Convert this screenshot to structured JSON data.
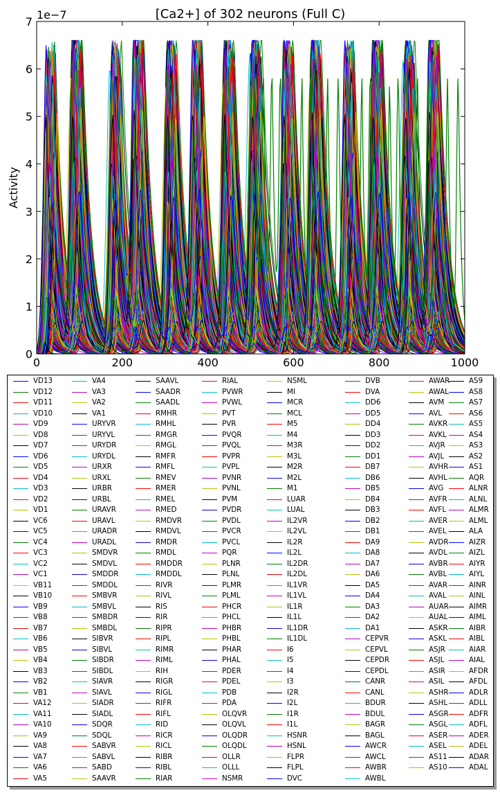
{
  "chart_data": {
    "type": "line",
    "title": "[Ca2+] of 302 neurons (Full C)",
    "xlabel": "",
    "ylabel": "Activity",
    "xlim": [
      0,
      1000
    ],
    "ylim": [
      0,
      7e-07
    ],
    "x_ticks": [
      "0",
      "200",
      "400",
      "600",
      "800",
      "1000"
    ],
    "y_ticks": [
      "0",
      "1",
      "2",
      "3",
      "4",
      "5",
      "6",
      "7"
    ],
    "y_offset_label": "1e−7",
    "grid": false,
    "legend_position": "below",
    "legend_columns": 8,
    "representative_series": {
      "name": "VD13 (oscillating cycle)",
      "burst_times": [
        35,
        95,
        185,
        240,
        315,
        378,
        450,
        512,
        590,
        652,
        733,
        797,
        870,
        930
      ],
      "peak_value": 6.6e-07
    },
    "small_burst_markers_x": [
      20,
      175,
      300,
      440,
      580,
      720,
      860
    ],
    "small_burst_peak": 2.5e-08,
    "green_cycle_times": [
      510,
      530,
      550,
      570,
      620,
      640,
      680,
      705,
      760,
      780,
      825,
      845,
      890,
      915,
      960,
      985
    ],
    "series_names": [
      "VD13",
      "VD12",
      "VD11",
      "VD10",
      "VD9",
      "VD8",
      "VD7",
      "VD6",
      "VD5",
      "VD4",
      "VD3",
      "VD2",
      "VD1",
      "VC6",
      "VC5",
      "VC4",
      "VC3",
      "VC2",
      "VC1",
      "VB11",
      "VB10",
      "VB9",
      "VB8",
      "VB7",
      "VB6",
      "VB5",
      "VB4",
      "VB3",
      "VB2",
      "VB1",
      "VA12",
      "VA11",
      "VA10",
      "VA9",
      "VA8",
      "VA7",
      "VA6",
      "VA5",
      "VA4",
      "VA3",
      "VA2",
      "VA1",
      "URYVR",
      "URYVL",
      "URYDR",
      "URYDL",
      "URXR",
      "URXL",
      "URBR",
      "URBL",
      "URAVR",
      "URAVL",
      "URADR",
      "URADL",
      "SMDVR",
      "SMDVL",
      "SMDDR",
      "SMDDL",
      "SMBVR",
      "SMBVL",
      "SMBDR",
      "SMBDL",
      "SIBVR",
      "SIBVL",
      "SIBDR",
      "SIBDL",
      "SIAVR",
      "SIAVL",
      "SIADR",
      "SIADL",
      "SDQR",
      "SDQL",
      "SABVR",
      "SABVL",
      "SABD",
      "SAAVR",
      "SAAVL",
      "SAADR",
      "SAADL",
      "RMHR",
      "RMHL",
      "RMGR",
      "RMGL",
      "RMFR",
      "RMFL",
      "RMEV",
      "RMER",
      "RMEL",
      "RMED",
      "RMDVR",
      "RMDVL",
      "RMDR",
      "RMDL",
      "RMDDR",
      "RMDDL",
      "RIVR",
      "RIVL",
      "RIS",
      "RIR",
      "RIPR",
      "RIPL",
      "RIMR",
      "RIML",
      "RIH",
      "RIGR",
      "RIGL",
      "RIFR",
      "RIFL",
      "RID",
      "RICR",
      "RICL",
      "RIBR",
      "RIBL",
      "RIAR",
      "RIAL",
      "PVWR",
      "PVWL",
      "PVT",
      "PVR",
      "PVQR",
      "PVQL",
      "PVPR",
      "PVPL",
      "PVNR",
      "PVNL",
      "PVM",
      "PVDR",
      "PVDL",
      "PVCR",
      "PVCL",
      "PQR",
      "PLNR",
      "PLNL",
      "PLMR",
      "PLML",
      "PHCR",
      "PHCL",
      "PHBR",
      "PHBL",
      "PHAR",
      "PHAL",
      "PDER",
      "PDEL",
      "PDB",
      "PDA",
      "OLQVR",
      "OLQVL",
      "OLQDR",
      "OLQDL",
      "OLLR",
      "OLLL",
      "NSMR",
      "NSML",
      "MI",
      "MCR",
      "MCL",
      "M5",
      "M4",
      "M3R",
      "M3L",
      "M2R",
      "M2L",
      "M1",
      "LUAR",
      "LUAL",
      "IL2VR",
      "IL2VL",
      "IL2R",
      "IL2L",
      "IL2DR",
      "IL2DL",
      "IL1VR",
      "IL1VL",
      "IL1R",
      "IL1L",
      "IL1DR",
      "IL1DL",
      "I6",
      "I5",
      "I4",
      "I3",
      "I2R",
      "I2L",
      "I1R",
      "I1L",
      "HSNR",
      "HSNL",
      "FLPR",
      "FLPL",
      "DVC",
      "DVB",
      "DVA",
      "DD6",
      "DD5",
      "DD4",
      "DD3",
      "DD2",
      "DD1",
      "DB7",
      "DB6",
      "DB5",
      "DB4",
      "DB3",
      "DB2",
      "DB1",
      "DA9",
      "DA8",
      "DA7",
      "DA6",
      "DA5",
      "DA4",
      "DA3",
      "DA2",
      "DA1",
      "CEPVR",
      "CEPVL",
      "CEPDR",
      "CEPDL",
      "CANR",
      "CANL",
      "BDUR",
      "BDUL",
      "BAGR",
      "BAGL",
      "AWCR",
      "AWCL",
      "AWBR",
      "AWBL",
      "AWAR",
      "AWAL",
      "AVM",
      "AVL",
      "AVKR",
      "AVKL",
      "AVJR",
      "AVJL",
      "AVHR",
      "AVHL",
      "AVG",
      "AVFR",
      "AVFL",
      "AVER",
      "AVEL",
      "AVDR",
      "AVDL",
      "AVBR",
      "AVBL",
      "AVAR",
      "AVAL",
      "AUAR",
      "AUAL",
      "ASKR",
      "ASKL",
      "ASJR",
      "ASJL",
      "ASIR",
      "ASIL",
      "ASHR",
      "ASHL",
      "ASGR",
      "ASGL",
      "ASER",
      "ASEL",
      "AS11",
      "AS10",
      "AS9",
      "AS8",
      "AS7",
      "AS6",
      "AS5",
      "AS4",
      "AS3",
      "AS2",
      "AS1",
      "AQR",
      "ALNR",
      "ALNL",
      "ALMR",
      "ALML",
      "ALA",
      "AIZR",
      "AIZL",
      "AIYR",
      "AIYL",
      "AINR",
      "AINL",
      "AIMR",
      "AIML",
      "AIBR",
      "AIBL",
      "AIAR",
      "AIAL",
      "AFDR",
      "AFDL",
      "ADLR",
      "ADLL",
      "ADFR",
      "ADFL",
      "ADER",
      "ADEL",
      "ADAR",
      "ADAL"
    ],
    "color_cycle": [
      "#0000ff",
      "#008000",
      "#ff0000",
      "#00bfbf",
      "#bf00bf",
      "#bfbf00",
      "#000000"
    ],
    "legend_column_lengths": [
      38,
      38,
      38,
      38,
      38,
      38,
      37,
      37
    ]
  }
}
